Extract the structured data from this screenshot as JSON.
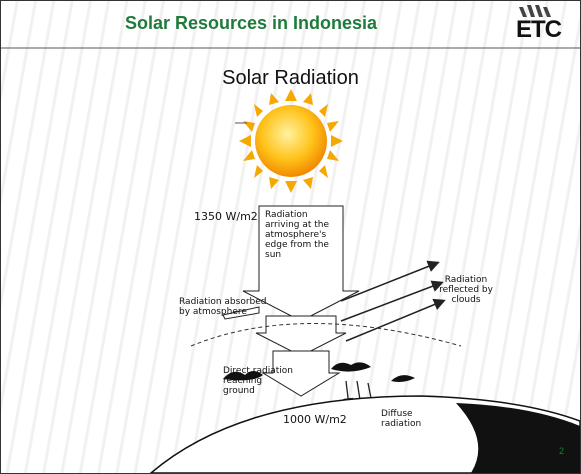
{
  "header": {
    "title": "Solar Resources in Indonesia",
    "logo": "ETC"
  },
  "subtitle": "Solar Radiation",
  "diagram": {
    "top_flux": "1350 W/m2",
    "incoming": "Radiation arriving at the atmosphere's edge from the sun",
    "reflected": "Radiation reflected by clouds",
    "absorbed": "Radiation absorbed by atmosphere",
    "direct": "Direct radiation reaching ground",
    "diffuse": "Diffuse radiation",
    "ground_flux": "1000 W/m2"
  },
  "page_number": "2"
}
